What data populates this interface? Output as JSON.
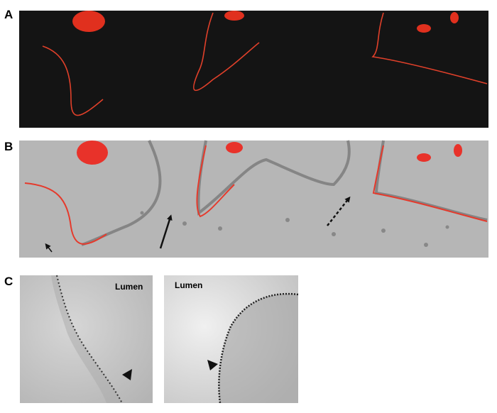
{
  "panels": [
    {
      "label": "A"
    },
    {
      "label": "B"
    },
    {
      "label": "C",
      "images": [
        {
          "label": "Lumen"
        },
        {
          "label": "Lumen"
        }
      ]
    }
  ]
}
